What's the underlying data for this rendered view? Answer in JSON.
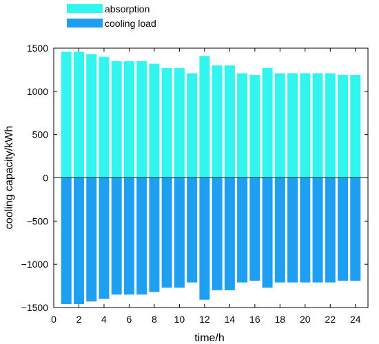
{
  "chart_data": {
    "type": "bar",
    "xlabel": "time/h",
    "ylabel": "cooling capacity/kWh",
    "xlim": [
      0,
      25
    ],
    "ylim": [
      -1500,
      1500
    ],
    "xticks": [
      "0",
      "2",
      "4",
      "6",
      "8",
      "10",
      "12",
      "14",
      "16",
      "18",
      "20",
      "22",
      "24"
    ],
    "yticks": [
      "1500",
      "1000",
      "500",
      "0",
      "-500",
      "-1000",
      "-1500"
    ],
    "legend_position": "top-left-outside",
    "x": [
      1,
      2,
      3,
      4,
      5,
      6,
      7,
      8,
      9,
      10,
      11,
      12,
      13,
      14,
      15,
      16,
      17,
      18,
      19,
      20,
      21,
      22,
      23,
      24
    ],
    "series": [
      {
        "name": "absorption",
        "color": "#33f5f0",
        "values": [
          1460,
          1460,
          1430,
          1400,
          1350,
          1350,
          1350,
          1320,
          1270,
          1270,
          1210,
          1410,
          1300,
          1300,
          1210,
          1190,
          1270,
          1210,
          1210,
          1210,
          1210,
          1210,
          1190,
          1190
        ]
      },
      {
        "name": "cooling load",
        "color": "#1e9ff2",
        "values": [
          -1460,
          -1460,
          -1430,
          -1400,
          -1350,
          -1350,
          -1350,
          -1320,
          -1270,
          -1270,
          -1210,
          -1410,
          -1300,
          -1300,
          -1210,
          -1190,
          -1270,
          -1210,
          -1210,
          -1210,
          -1210,
          -1210,
          -1190,
          -1190
        ]
      }
    ]
  }
}
